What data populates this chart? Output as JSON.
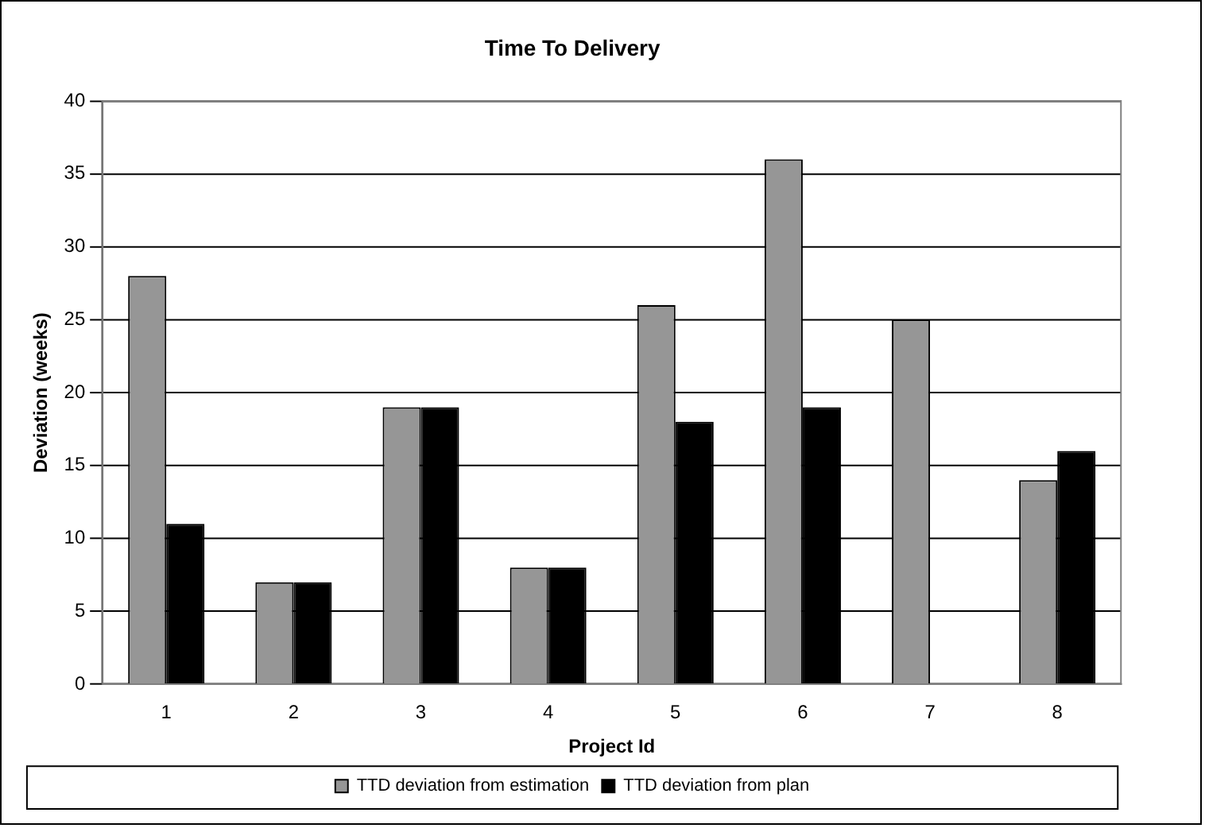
{
  "chart_data": {
    "type": "bar",
    "title": "Time To Delivery",
    "xlabel": "Project Id",
    "ylabel": "Deviation (weeks)",
    "categories": [
      "1",
      "2",
      "3",
      "4",
      "5",
      "6",
      "7",
      "8"
    ],
    "series": [
      {
        "name": "TTD deviation from estimation",
        "color": "#969696",
        "values": [
          28,
          7,
          19,
          8,
          26,
          36,
          25,
          14
        ]
      },
      {
        "name": "TTD deviation from plan",
        "color": "#000000",
        "values": [
          11,
          7,
          19,
          8,
          18,
          19,
          null,
          16
        ]
      }
    ],
    "ylim": [
      0,
      40
    ],
    "yticks": [
      0,
      5,
      10,
      15,
      20,
      25,
      30,
      35,
      40
    ],
    "grid": "y",
    "legend": "bottom"
  }
}
